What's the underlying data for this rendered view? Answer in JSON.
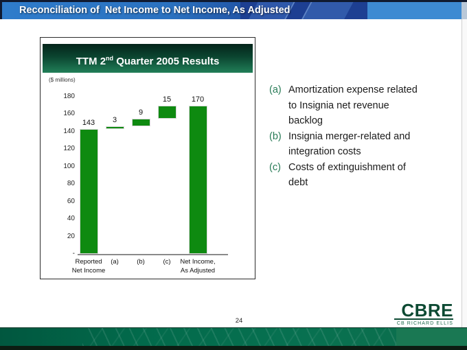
{
  "header": {
    "title": "Reconciliation of  Net Income to Net Income, As Adjusted"
  },
  "chart": {
    "title_prefix": "TTM 2",
    "title_sup": "nd",
    "title_suffix": " Quarter 2005 Results",
    "units_label": "($ millions)"
  },
  "chart_data": {
    "type": "bar",
    "subtype": "waterfall",
    "title": "TTM 2nd Quarter 2005 Results",
    "units": "$ millions",
    "categories": [
      "Reported Net Income",
      "(a)",
      "(b)",
      "(c)",
      "Net Income, As Adjusted"
    ],
    "segments": [
      {
        "category_lines": [
          "Reported",
          "Net Income"
        ],
        "start": 0,
        "end": 143,
        "label": "143"
      },
      {
        "category_lines": [
          "(a)"
        ],
        "start": 143,
        "end": 146,
        "label": "3"
      },
      {
        "category_lines": [
          "(b)"
        ],
        "start": 146,
        "end": 155,
        "label": "9"
      },
      {
        "category_lines": [
          "(c)"
        ],
        "start": 155,
        "end": 170,
        "label": "15"
      },
      {
        "category_lines": [
          "Net Income,",
          "As Adjusted"
        ],
        "start": 0,
        "end": 170,
        "label": "170"
      }
    ],
    "y_ticks": [
      {
        "v": 180,
        "label": "180"
      },
      {
        "v": 160,
        "label": "160"
      },
      {
        "v": 140,
        "label": "140"
      },
      {
        "v": 120,
        "label": "120"
      },
      {
        "v": 100,
        "label": "100"
      },
      {
        "v": 80,
        "label": "80"
      },
      {
        "v": 60,
        "label": "60"
      },
      {
        "v": 40,
        "label": "40"
      },
      {
        "v": 20,
        "label": "20"
      },
      {
        "v": 0,
        "label": "-"
      }
    ],
    "ylim": [
      0,
      180
    ],
    "grid": false,
    "legend": false,
    "bar_color": "#0e8a10"
  },
  "notes": [
    {
      "marker": "(a)",
      "text": "Amortization expense related to Insignia net revenue backlog"
    },
    {
      "marker": "(b)",
      "text": "Insignia merger-related and integration costs"
    },
    {
      "marker": "(c)",
      "text": "Costs of extinguishment of debt"
    }
  ],
  "footer": {
    "page_number": "24",
    "logo_name": "CBRE",
    "logo_tagline": "CB RICHARD ELLIS"
  },
  "colors": {
    "bar_green": "#0e8a10",
    "banner_green_dark": "#04241a",
    "banner_green_light": "#217f58",
    "note_marker_green": "#267a55",
    "cbre_logo_green": "#0d4a33",
    "footer_band_green": "#026a4b",
    "titlebar_blue_left": "#2f7ccb",
    "titlebar_blue_mid": "#1d3f92",
    "titlebar_blue_right": "#3d8ad2"
  }
}
